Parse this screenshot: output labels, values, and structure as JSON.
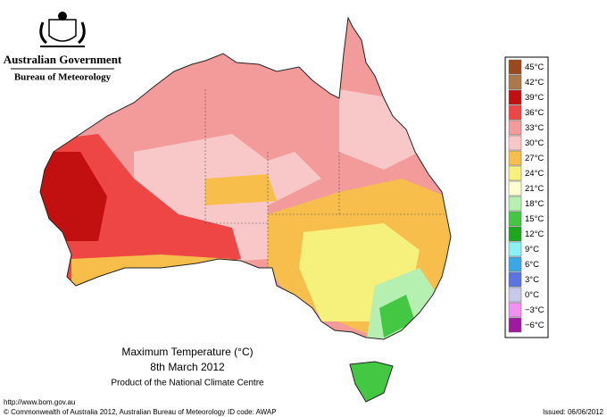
{
  "header": {
    "government": "Australian Government",
    "agency": "Bureau of Meteorology"
  },
  "map": {
    "title": "Maximum Temperature (°C)",
    "date": "8th March 2012",
    "product": "Product of the National Climate Centre"
  },
  "legend": [
    {
      "label": "45°C",
      "color": "#9a4a1e"
    },
    {
      "label": "42°C",
      "color": "#a9794a"
    },
    {
      "label": "39°C",
      "color": "#c20f0f"
    },
    {
      "label": "36°C",
      "color": "#ee4545"
    },
    {
      "label": "33°C",
      "color": "#f39a9a"
    },
    {
      "label": "30°C",
      "color": "#f8c8c8"
    },
    {
      "label": "27°C",
      "color": "#f7be4c"
    },
    {
      "label": "24°C",
      "color": "#f6f07c"
    },
    {
      "label": "21°C",
      "color": "#fdfdd0"
    },
    {
      "label": "18°C",
      "color": "#b6f0b0"
    },
    {
      "label": "15°C",
      "color": "#44c844"
    },
    {
      "label": "12°C",
      "color": "#1ea61e"
    },
    {
      "label": "9°C",
      "color": "#8af2f2"
    },
    {
      "label": "6°C",
      "color": "#3aa8e8"
    },
    {
      "label": "3°C",
      "color": "#5c74e0"
    },
    {
      "label": "0°C",
      "color": "#c8c8e8"
    },
    {
      "label": "−3°C",
      "color": "#f090f0"
    },
    {
      "label": "−6°C",
      "color": "#a01aa0"
    }
  ],
  "footer": {
    "url": "http://www.bom.gov.au",
    "copyright": "© Commonwealth of Australia 2012, Australian Bureau of Meteorology",
    "id_code": "ID code: AWAP",
    "issued": "Issued: 06/06/2012"
  }
}
